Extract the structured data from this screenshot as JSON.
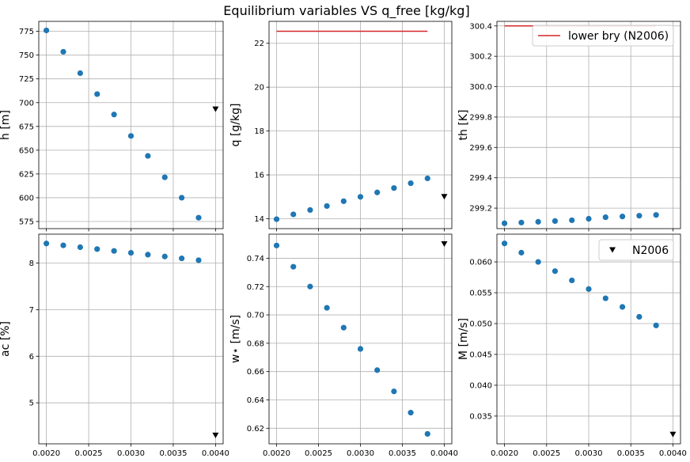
{
  "chart_data": {
    "title": "Equilibrium variables VS q_free [kg/kg]",
    "x_ticks": [
      0.002,
      0.0025,
      0.003,
      0.0035,
      0.004
    ],
    "x_tick_labels": [
      "0.0020",
      "0.0025",
      "0.0030",
      "0.0035",
      "0.0040"
    ],
    "xlim": [
      0.00191,
      0.00409
    ],
    "q_free": [
      0.002,
      0.0022,
      0.0024,
      0.0026,
      0.0028,
      0.003,
      0.0032,
      0.0034,
      0.0036,
      0.0038
    ],
    "point_color": "#1f77b4",
    "line_color": "#d62728",
    "ref_marker_color": "#000000",
    "ref_x": 0.004,
    "legend": {
      "line_label": "lower bry (N2006)",
      "marker_label": "N2006",
      "marker_symbol": "▼"
    },
    "panels": [
      {
        "id": "h",
        "type": "scatter",
        "ylabel": "h [m]",
        "ylim": [
          567.5,
          785.5
        ],
        "yticks": [
          575,
          600,
          625,
          650,
          675,
          700,
          725,
          750,
          775
        ],
        "ytick_labels": [
          "575",
          "600",
          "625",
          "650",
          "675",
          "700",
          "725",
          "750",
          "775"
        ],
        "values": [
          776,
          753.5,
          731,
          709,
          687.5,
          665,
          644,
          621.5,
          600,
          579
        ],
        "ref_value": 693,
        "show_x_ticklabels": false
      },
      {
        "id": "q",
        "type": "scatter",
        "ylabel": "q [g/kg]",
        "ylim": [
          13.55,
          23.0
        ],
        "yticks": [
          14,
          16,
          18,
          20,
          22
        ],
        "ytick_labels": [
          "14",
          "16",
          "18",
          "20",
          "22"
        ],
        "values": [
          13.98,
          14.2,
          14.4,
          14.58,
          14.8,
          15.0,
          15.2,
          15.4,
          15.62,
          15.84
        ],
        "ref_value": 15.0,
        "line": {
          "x": [
            0.002,
            0.0038
          ],
          "y": [
            22.55,
            22.55
          ]
        },
        "show_x_ticklabels": false
      },
      {
        "id": "th",
        "type": "scatter",
        "ylabel": "th [K]",
        "ylim": [
          299.065,
          300.43
        ],
        "yticks": [
          299.2,
          299.4,
          299.6,
          299.8,
          300.0,
          300.2,
          300.4
        ],
        "ytick_labels": [
          "299.2",
          "299.4",
          "299.6",
          "299.8",
          "300.0",
          "300.2",
          "300.4"
        ],
        "values": [
          299.1,
          299.105,
          299.11,
          299.115,
          299.12,
          299.13,
          299.14,
          299.145,
          299.15,
          299.155
        ],
        "line": {
          "x": [
            0.002,
            0.0038
          ],
          "y": [
            300.4,
            300.4
          ]
        },
        "legend": "line",
        "show_x_ticklabels": false
      },
      {
        "id": "ac",
        "type": "scatter",
        "ylabel": "aᴄ [%]",
        "ylim": [
          4.12,
          8.62
        ],
        "yticks": [
          5,
          6,
          7,
          8
        ],
        "ytick_labels": [
          "5",
          "6",
          "7",
          "8"
        ],
        "values": [
          8.42,
          8.38,
          8.34,
          8.3,
          8.26,
          8.22,
          8.18,
          8.14,
          8.1,
          8.06
        ],
        "ref_value": 4.3,
        "show_x_ticklabels": true
      },
      {
        "id": "wstar",
        "type": "scatter",
        "ylabel": "w⋆ [m/s]",
        "ylim": [
          0.609,
          0.757
        ],
        "yticks": [
          0.62,
          0.64,
          0.66,
          0.68,
          0.7,
          0.72,
          0.74
        ],
        "ytick_labels": [
          "0.62",
          "0.64",
          "0.66",
          "0.68",
          "0.70",
          "0.72",
          "0.74"
        ],
        "values": [
          0.749,
          0.734,
          0.72,
          0.705,
          0.691,
          0.676,
          0.661,
          0.646,
          0.631,
          0.616
        ],
        "ref_value": 0.75,
        "show_x_ticklabels": true
      },
      {
        "id": "M",
        "type": "scatter",
        "ylabel": "M [m/s]",
        "ylim": [
          0.0305,
          0.0645
        ],
        "yticks": [
          0.035,
          0.04,
          0.045,
          0.05,
          0.055,
          0.06
        ],
        "ytick_labels": [
          "0.035",
          "0.040",
          "0.045",
          "0.050",
          "0.055",
          "0.060"
        ],
        "values": [
          0.063,
          0.0615,
          0.06,
          0.0585,
          0.057,
          0.0556,
          0.0541,
          0.0527,
          0.0511,
          0.0497
        ],
        "ref_value": 0.032,
        "legend": "marker",
        "show_x_ticklabels": true
      }
    ]
  }
}
